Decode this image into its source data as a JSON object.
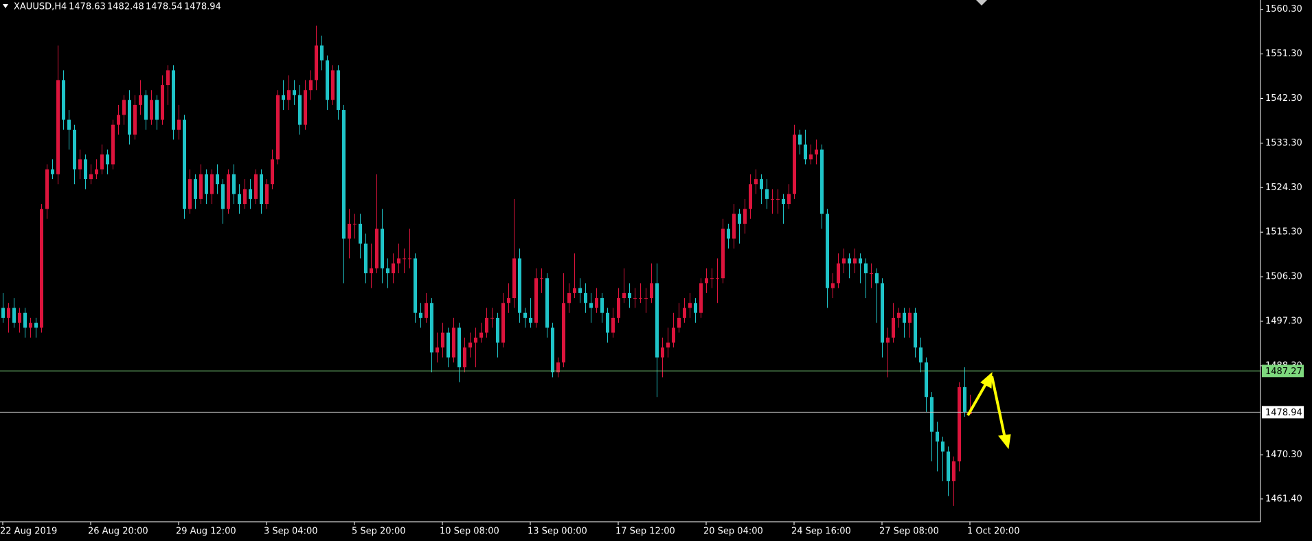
{
  "chart_data": {
    "type": "candlestick",
    "symbol": "XAUUSD,H4",
    "bull_color": "#dc143c",
    "bear_color": "#1fc4c8",
    "ylim": [
      1456.8,
      1562.2
    ],
    "yticks": [
      {
        "value": 1560.3,
        "label": "1560.30"
      },
      {
        "value": 1551.3,
        "label": "1551.30"
      },
      {
        "value": 1542.3,
        "label": "1542.30"
      },
      {
        "value": 1533.3,
        "label": "1533.30"
      },
      {
        "value": 1524.3,
        "label": "1524.30"
      },
      {
        "value": 1515.3,
        "label": "1515.30"
      },
      {
        "value": 1506.3,
        "label": "1506.30"
      },
      {
        "value": 1497.3,
        "label": "1497.30"
      },
      {
        "value": 1488.3,
        "label": "1488.30"
      },
      {
        "value": 1470.3,
        "label": "1470.30"
      },
      {
        "value": 1461.4,
        "label": "1461.40"
      }
    ],
    "xticks": [
      "22 Aug 2019",
      "26 Aug 20:00",
      "29 Aug 12:00",
      "3 Sep 04:00",
      "5 Sep 20:00",
      "10 Sep 08:00",
      "13 Sep 00:00",
      "17 Sep 12:00",
      "20 Sep 04:00",
      "24 Sep 16:00",
      "27 Sep 08:00",
      "1 Oct 20:00"
    ],
    "lines": [
      {
        "value": 1487.27,
        "color": "#7ed87e"
      },
      {
        "value": 1478.94,
        "color": "#c8c8c8"
      }
    ],
    "candles": [
      [
        1500,
        1503,
        1497,
        1498
      ],
      [
        1498,
        1501,
        1495,
        1500
      ],
      [
        1500,
        1502,
        1496,
        1497
      ],
      [
        1497,
        1500,
        1495,
        1499
      ],
      [
        1499,
        1500,
        1494,
        1496
      ],
      [
        1496,
        1498,
        1494,
        1497
      ],
      [
        1497,
        1498,
        1494,
        1496
      ],
      [
        1496,
        1521,
        1495,
        1520
      ],
      [
        1520,
        1529,
        1518,
        1528
      ],
      [
        1528,
        1530,
        1526,
        1527
      ],
      [
        1527,
        1553,
        1525,
        1546
      ],
      [
        1546,
        1548,
        1536,
        1538
      ],
      [
        1538,
        1540,
        1532,
        1536
      ],
      [
        1536,
        1537,
        1525,
        1528
      ],
      [
        1528,
        1532,
        1526,
        1530
      ],
      [
        1530,
        1531,
        1524,
        1526
      ],
      [
        1526,
        1529,
        1525,
        1527
      ],
      [
        1527,
        1530,
        1526,
        1528
      ],
      [
        1528,
        1533,
        1527,
        1531
      ],
      [
        1531,
        1532,
        1527,
        1529
      ],
      [
        1529,
        1538,
        1528,
        1537
      ],
      [
        1537,
        1541,
        1535,
        1539
      ],
      [
        1539,
        1543,
        1537,
        1542
      ],
      [
        1542,
        1544,
        1533,
        1535
      ],
      [
        1535,
        1543,
        1534,
        1541
      ],
      [
        1541,
        1546,
        1539,
        1543
      ],
      [
        1543,
        1544,
        1536,
        1538
      ],
      [
        1538,
        1544,
        1537,
        1542
      ],
      [
        1542,
        1543,
        1536,
        1538
      ],
      [
        1538,
        1547,
        1537,
        1545
      ],
      [
        1545,
        1549,
        1541,
        1548
      ],
      [
        1548,
        1549,
        1534,
        1536
      ],
      [
        1536,
        1541,
        1534,
        1538
      ],
      [
        1538,
        1539,
        1518,
        1520
      ],
      [
        1520,
        1528,
        1519,
        1526
      ],
      [
        1526,
        1527,
        1520,
        1522
      ],
      [
        1522,
        1529,
        1521,
        1527
      ],
      [
        1527,
        1528,
        1521,
        1523
      ],
      [
        1523,
        1528,
        1521,
        1527
      ],
      [
        1527,
        1529,
        1523,
        1525
      ],
      [
        1525,
        1526,
        1517,
        1520
      ],
      [
        1520,
        1528,
        1519,
        1527
      ],
      [
        1527,
        1529,
        1521,
        1523
      ],
      [
        1523,
        1525,
        1519,
        1521
      ],
      [
        1521,
        1526,
        1520,
        1524
      ],
      [
        1524,
        1526,
        1520,
        1522
      ],
      [
        1522,
        1528,
        1521,
        1527
      ],
      [
        1527,
        1528,
        1519,
        1521
      ],
      [
        1521,
        1526,
        1520,
        1525
      ],
      [
        1525,
        1532,
        1524,
        1530
      ],
      [
        1530,
        1544,
        1529,
        1543
      ],
      [
        1543,
        1546,
        1540,
        1542
      ],
      [
        1542,
        1547,
        1540,
        1544
      ],
      [
        1544,
        1546,
        1541,
        1543
      ],
      [
        1543,
        1545,
        1535,
        1537
      ],
      [
        1537,
        1546,
        1536,
        1544
      ],
      [
        1544,
        1548,
        1542,
        1546
      ],
      [
        1546,
        1557,
        1544,
        1553
      ],
      [
        1553,
        1555,
        1548,
        1550
      ],
      [
        1550,
        1551,
        1540,
        1542
      ],
      [
        1542,
        1549,
        1541,
        1548
      ],
      [
        1548,
        1549,
        1538,
        1540
      ],
      [
        1540,
        1541,
        1505,
        1514
      ],
      [
        1514,
        1520,
        1510,
        1517
      ],
      [
        1517,
        1519,
        1514,
        1517
      ],
      [
        1517,
        1519,
        1510,
        1513
      ],
      [
        1513,
        1515,
        1505,
        1507
      ],
      [
        1507,
        1513,
        1504,
        1508
      ],
      [
        1508,
        1527,
        1507,
        1516
      ],
      [
        1516,
        1520,
        1505,
        1508
      ],
      [
        1508,
        1510,
        1504,
        1507
      ],
      [
        1507,
        1511,
        1505,
        1509
      ],
      [
        1509,
        1513,
        1507,
        1510
      ],
      [
        1510,
        1512,
        1507,
        1510
      ],
      [
        1510,
        1516,
        1508,
        1510
      ],
      [
        1510,
        1511,
        1497,
        1499
      ],
      [
        1499,
        1501,
        1496,
        1498
      ],
      [
        1498,
        1503,
        1497,
        1501
      ],
      [
        1501,
        1502,
        1487,
        1491
      ],
      [
        1491,
        1495,
        1489,
        1492
      ],
      [
        1492,
        1497,
        1490,
        1495
      ],
      [
        1495,
        1496,
        1488,
        1490
      ],
      [
        1490,
        1498,
        1489,
        1496
      ],
      [
        1496,
        1497,
        1485,
        1488
      ],
      [
        1488,
        1494,
        1487,
        1492
      ],
      [
        1492,
        1495,
        1490,
        1493
      ],
      [
        1493,
        1496,
        1488,
        1494
      ],
      [
        1494,
        1497,
        1493,
        1495
      ],
      [
        1495,
        1500,
        1494,
        1498
      ],
      [
        1498,
        1500,
        1496,
        1498
      ],
      [
        1498,
        1499,
        1490,
        1493
      ],
      [
        1493,
        1503,
        1492,
        1501
      ],
      [
        1501,
        1505,
        1499,
        1502
      ],
      [
        1502,
        1522,
        1500,
        1510
      ],
      [
        1510,
        1512,
        1497,
        1499
      ],
      [
        1499,
        1500,
        1496,
        1498
      ],
      [
        1498,
        1502,
        1496,
        1497
      ],
      [
        1497,
        1508,
        1496,
        1506
      ],
      [
        1506,
        1508,
        1503,
        1506
      ],
      [
        1506,
        1507,
        1494,
        1496
      ],
      [
        1496,
        1497,
        1486,
        1487
      ],
      [
        1487,
        1490,
        1486,
        1489
      ],
      [
        1489,
        1507,
        1488,
        1501
      ],
      [
        1501,
        1505,
        1499,
        1503
      ],
      [
        1503,
        1511,
        1502,
        1504
      ],
      [
        1504,
        1506,
        1501,
        1503
      ],
      [
        1503,
        1505,
        1499,
        1501
      ],
      [
        1501,
        1503,
        1497,
        1500
      ],
      [
        1500,
        1504,
        1499,
        1502
      ],
      [
        1502,
        1503,
        1497,
        1499
      ],
      [
        1499,
        1500,
        1493,
        1495
      ],
      [
        1495,
        1500,
        1494,
        1498
      ],
      [
        1498,
        1504,
        1497,
        1502
      ],
      [
        1502,
        1508,
        1501,
        1503
      ],
      [
        1503,
        1505,
        1500,
        1502
      ],
      [
        1502,
        1504,
        1500,
        1502
      ],
      [
        1502,
        1505,
        1501,
        1502
      ],
      [
        1502,
        1504,
        1499,
        1502
      ],
      [
        1502,
        1509,
        1501,
        1505
      ],
      [
        1505,
        1509,
        1482,
        1490
      ],
      [
        1490,
        1494,
        1486,
        1492
      ],
      [
        1492,
        1496,
        1490,
        1493
      ],
      [
        1493,
        1499,
        1492,
        1496
      ],
      [
        1496,
        1501,
        1495,
        1498
      ],
      [
        1498,
        1502,
        1497,
        1500
      ],
      [
        1500,
        1503,
        1498,
        1501
      ],
      [
        1501,
        1502,
        1497,
        1499
      ],
      [
        1499,
        1506,
        1498,
        1505
      ],
      [
        1505,
        1508,
        1503,
        1506
      ],
      [
        1506,
        1508,
        1504,
        1506
      ],
      [
        1506,
        1510,
        1501,
        1506
      ],
      [
        1506,
        1518,
        1505,
        1516
      ],
      [
        1516,
        1517,
        1512,
        1514
      ],
      [
        1514,
        1521,
        1512,
        1519
      ],
      [
        1519,
        1520,
        1513,
        1517
      ],
      [
        1517,
        1522,
        1515,
        1520
      ],
      [
        1520,
        1527,
        1518,
        1525
      ],
      [
        1525,
        1528,
        1523,
        1526
      ],
      [
        1526,
        1527,
        1521,
        1524
      ],
      [
        1524,
        1526,
        1520,
        1522
      ],
      [
        1522,
        1524,
        1519,
        1522
      ],
      [
        1522,
        1524,
        1519,
        1522
      ],
      [
        1522,
        1523,
        1517,
        1521
      ],
      [
        1521,
        1525,
        1520,
        1523
      ],
      [
        1523,
        1537,
        1522,
        1535
      ],
      [
        1535,
        1536,
        1531,
        1533
      ],
      [
        1533,
        1536,
        1529,
        1530
      ],
      [
        1530,
        1533,
        1529,
        1531
      ],
      [
        1531,
        1534,
        1529,
        1532
      ],
      [
        1532,
        1533,
        1516,
        1519
      ],
      [
        1519,
        1520,
        1500,
        1504
      ],
      [
        1504,
        1507,
        1502,
        1505
      ],
      [
        1505,
        1511,
        1504,
        1509
      ],
      [
        1509,
        1512,
        1507,
        1510
      ],
      [
        1510,
        1511,
        1506,
        1509
      ],
      [
        1509,
        1512,
        1507,
        1510
      ],
      [
        1510,
        1511,
        1505,
        1509
      ],
      [
        1509,
        1510,
        1502,
        1507
      ],
      [
        1507,
        1509,
        1504,
        1507
      ],
      [
        1507,
        1508,
        1497,
        1505
      ],
      [
        1505,
        1506,
        1490,
        1493
      ],
      [
        1493,
        1496,
        1486,
        1494
      ],
      [
        1494,
        1501,
        1493,
        1498
      ],
      [
        1498,
        1500,
        1496,
        1499
      ],
      [
        1499,
        1500,
        1494,
        1497
      ],
      [
        1497,
        1500,
        1494,
        1499
      ],
      [
        1499,
        1500,
        1490,
        1492
      ],
      [
        1492,
        1494,
        1487,
        1489
      ],
      [
        1489,
        1490,
        1479,
        1482
      ],
      [
        1482,
        1483,
        1469,
        1475
      ],
      [
        1475,
        1477,
        1467,
        1473
      ],
      [
        1473,
        1474,
        1465,
        1471
      ],
      [
        1471,
        1472,
        1462,
        1465
      ],
      [
        1465,
        1470,
        1460,
        1469
      ],
      [
        1469,
        1485,
        1467,
        1484
      ],
      [
        1484,
        1488,
        1478,
        1479
      ],
      [
        1478.63,
        1482.48,
        1478.54,
        1478.94
      ]
    ]
  }
}
